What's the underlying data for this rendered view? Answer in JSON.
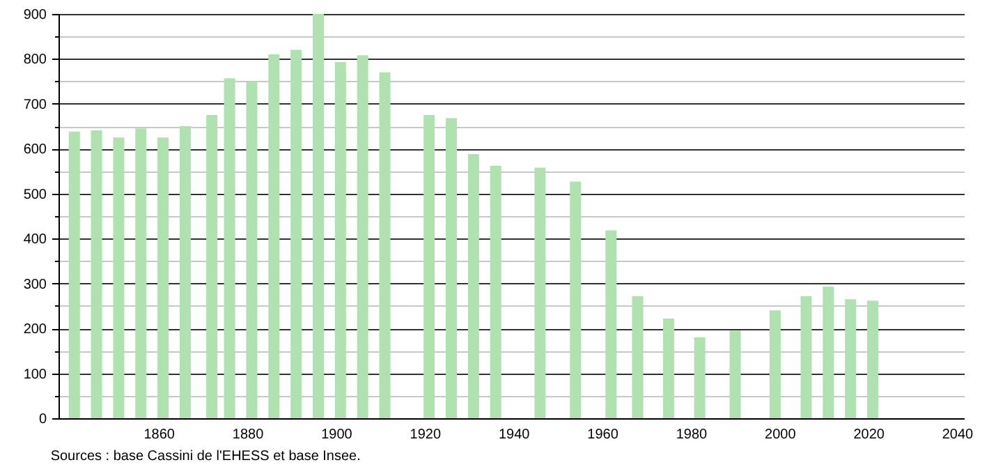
{
  "chart_data": {
    "type": "bar",
    "x": [
      1841,
      1846,
      1851,
      1856,
      1861,
      1866,
      1872,
      1876,
      1881,
      1886,
      1891,
      1896,
      1901,
      1906,
      1911,
      1921,
      1926,
      1931,
      1936,
      1946,
      1954,
      1962,
      1968,
      1975,
      1982,
      1990,
      1999,
      2006,
      2011,
      2016,
      2021
    ],
    "values": [
      638,
      641,
      625,
      645,
      625,
      650,
      675,
      757,
      748,
      810,
      820,
      900,
      793,
      808,
      770,
      675,
      668,
      588,
      562,
      558,
      527,
      418,
      272,
      222,
      180,
      195,
      240,
      272,
      293,
      265,
      262
    ],
    "color": "#b0e2b0",
    "xlim": [
      1839,
      2040
    ],
    "xticks": [
      1860,
      1880,
      1900,
      1920,
      1940,
      1960,
      1980,
      2000,
      2020,
      2040
    ],
    "ylim": [
      0,
      900
    ],
    "yticks": [
      0,
      {
        "value": 50,
        "label": null
      },
      100,
      {
        "value": 150,
        "label": null
      },
      200,
      {
        "value": 250,
        "label": null
      },
      300,
      {
        "value": 350,
        "label": null
      },
      400,
      {
        "value": 450,
        "label": null
      },
      500,
      {
        "value": 550,
        "label": null
      },
      600,
      {
        "value": 650,
        "label": null
      },
      700,
      {
        "value": 750,
        "label": null
      },
      800,
      {
        "value": 850,
        "label": null
      },
      900
    ],
    "grid": "y",
    "annotations": [
      "Sources : base Cassini de l'EHESS et base Insee."
    ]
  }
}
